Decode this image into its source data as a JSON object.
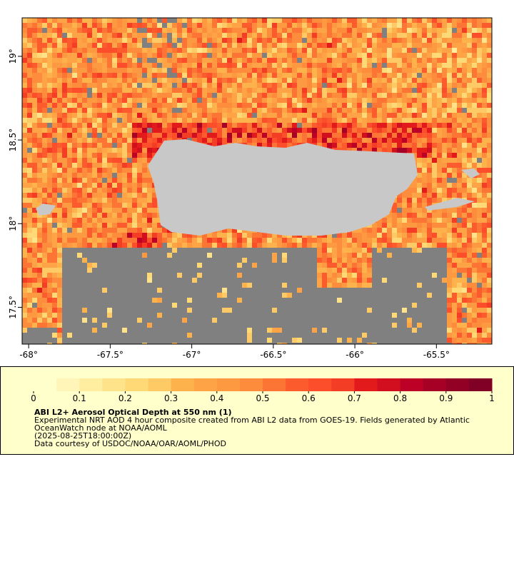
{
  "map": {
    "xlim": [
      -68.04,
      -65.16
    ],
    "ylim": [
      17.28,
      19.23
    ],
    "xticks": [
      {
        "value": -68,
        "label": "-68°"
      },
      {
        "value": -67.5,
        "label": "-67.5°"
      },
      {
        "value": -67,
        "label": "-67°"
      },
      {
        "value": -66.5,
        "label": "-66.5°"
      },
      {
        "value": -66,
        "label": "-66°"
      },
      {
        "value": -65.5,
        "label": "-65.5°"
      }
    ],
    "yticks": [
      {
        "value": 17.5,
        "label": "17.5°"
      },
      {
        "value": 18,
        "label": "18°"
      },
      {
        "value": 18.5,
        "label": "18.5°"
      },
      {
        "value": 19,
        "label": "19°"
      }
    ]
  },
  "colorbar": {
    "lim": [
      0,
      1
    ],
    "ticks": [
      0,
      0.1,
      0.2,
      0.3,
      0.4,
      0.5,
      0.6,
      0.7,
      0.8,
      0.9,
      1
    ],
    "colors": [
      "#ffffcc",
      "#fff5b8",
      "#ffeda0",
      "#fee38b",
      "#fed976",
      "#feca66",
      "#feb24c",
      "#fea446",
      "#fd9a41",
      "#fd8d3c",
      "#fc7535",
      "#fc5b2e",
      "#fc4e2a",
      "#f43d25",
      "#e31a1c",
      "#d10f1f",
      "#bd0026",
      "#a60026",
      "#930026",
      "#800026"
    ]
  },
  "caption": {
    "title": "ABI L2+ Aerosol Optical Depth at 550 nm (1)",
    "lines": [
      "Experimental NRT AOD 4 hour composite created from ABI L2 data from GOES-19. Fields generated by Atlantic",
      "OceanWatch node at NOAA/AOML",
      "(2025-08-25T18:00:00Z)",
      "Data courtesy of USDOC/NOAA/OAR/AOML/PHOD"
    ]
  }
}
